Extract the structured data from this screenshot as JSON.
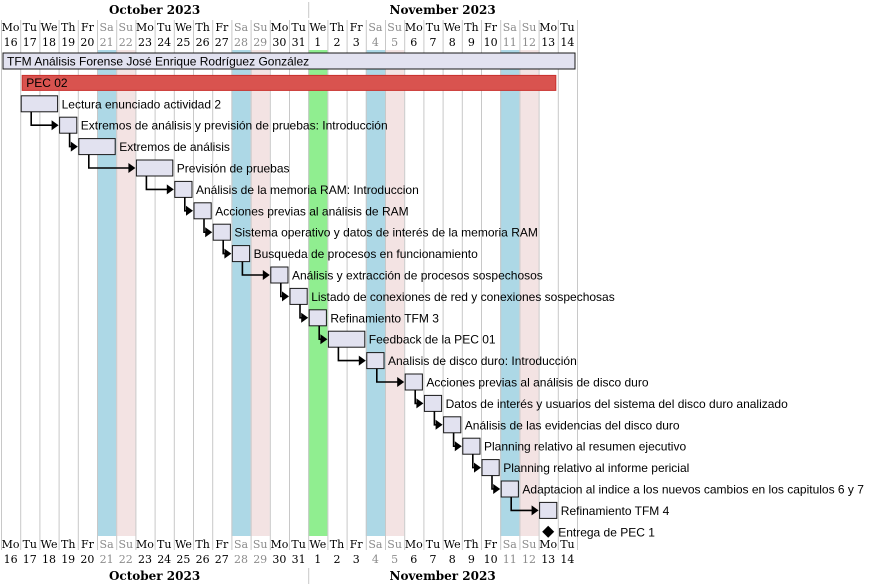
{
  "chart_data": {
    "type": "gantt",
    "start_date": "2023-10-16",
    "end_date": "2023-11-14",
    "months": [
      {
        "label": "October 2023",
        "first_day": "2023-10-16",
        "last_day": "2023-10-31"
      },
      {
        "label": "November 2023",
        "first_day": "2023-11-01",
        "last_day": "2023-11-14"
      }
    ],
    "days": [
      {
        "dow": "Mo",
        "num": "16",
        "weekend": false
      },
      {
        "dow": "Tu",
        "num": "17",
        "weekend": false
      },
      {
        "dow": "We",
        "num": "18",
        "weekend": false
      },
      {
        "dow": "Th",
        "num": "19",
        "weekend": false
      },
      {
        "dow": "Fr",
        "num": "20",
        "weekend": false
      },
      {
        "dow": "Sa",
        "num": "21",
        "weekend": true
      },
      {
        "dow": "Su",
        "num": "22",
        "weekend": true
      },
      {
        "dow": "Mo",
        "num": "23",
        "weekend": false
      },
      {
        "dow": "Tu",
        "num": "24",
        "weekend": false
      },
      {
        "dow": "We",
        "num": "25",
        "weekend": false
      },
      {
        "dow": "Th",
        "num": "26",
        "weekend": false
      },
      {
        "dow": "Fr",
        "num": "27",
        "weekend": false
      },
      {
        "dow": "Sa",
        "num": "28",
        "weekend": true
      },
      {
        "dow": "Su",
        "num": "29",
        "weekend": true
      },
      {
        "dow": "Mo",
        "num": "30",
        "weekend": false
      },
      {
        "dow": "Tu",
        "num": "31",
        "weekend": false
      },
      {
        "dow": "We",
        "num": "1",
        "weekend": false
      },
      {
        "dow": "Th",
        "num": "2",
        "weekend": false
      },
      {
        "dow": "Fr",
        "num": "3",
        "weekend": false
      },
      {
        "dow": "Sa",
        "num": "4",
        "weekend": true
      },
      {
        "dow": "Su",
        "num": "5",
        "weekend": true
      },
      {
        "dow": "Mo",
        "num": "6",
        "weekend": false
      },
      {
        "dow": "Tu",
        "num": "7",
        "weekend": false
      },
      {
        "dow": "We",
        "num": "8",
        "weekend": false
      },
      {
        "dow": "Th",
        "num": "9",
        "weekend": false
      },
      {
        "dow": "Fr",
        "num": "10",
        "weekend": false
      },
      {
        "dow": "Sa",
        "num": "11",
        "weekend": true
      },
      {
        "dow": "Su",
        "num": "12",
        "weekend": true
      },
      {
        "dow": "Mo",
        "num": "13",
        "weekend": false
      },
      {
        "dow": "Tu",
        "num": "14",
        "weekend": false
      }
    ],
    "highlighted_days": [
      {
        "date": "2023-10-21",
        "color": "#add8e6"
      },
      {
        "date": "2023-10-22",
        "color": "#f3e3e3"
      },
      {
        "date": "2023-10-28",
        "color": "#add8e6"
      },
      {
        "date": "2023-10-29",
        "color": "#f3e3e3"
      },
      {
        "date": "2023-11-01",
        "color": "#90ee90"
      },
      {
        "date": "2023-11-04",
        "color": "#add8e6"
      },
      {
        "date": "2023-11-05",
        "color": "#f3e3e3"
      },
      {
        "date": "2023-11-11",
        "color": "#add8e6"
      },
      {
        "date": "2023-11-12",
        "color": "#f3e3e3"
      }
    ],
    "project": {
      "label": "TFM Análisis Forense José Enrique Rodríguez González",
      "start": "2023-10-16",
      "end": "2023-11-14"
    },
    "phase": {
      "label": "PEC 02",
      "start": "2023-10-17",
      "end": "2023-11-13",
      "color": "#d9534f"
    },
    "tasks": [
      {
        "label": "Lectura enunciado actividad 2",
        "start": "2023-10-17",
        "end": "2023-10-18",
        "after_prev": false
      },
      {
        "label": "Extremos de análisis y previsión de pruebas: Introducción",
        "start": "2023-10-19",
        "end": "2023-10-19",
        "after_prev": true
      },
      {
        "label": "Extremos de análisis",
        "start": "2023-10-20",
        "end": "2023-10-21",
        "after_prev": true
      },
      {
        "label": "Previsión de pruebas",
        "start": "2023-10-23",
        "end": "2023-10-24",
        "after_prev": true
      },
      {
        "label": "Análisis de la memoria RAM: Introduccion",
        "start": "2023-10-25",
        "end": "2023-10-25",
        "after_prev": true
      },
      {
        "label": "Acciones previas al análisis de RAM",
        "start": "2023-10-26",
        "end": "2023-10-26",
        "after_prev": true
      },
      {
        "label": "Sistema operativo y datos de interés de la memoria RAM",
        "start": "2023-10-27",
        "end": "2023-10-27",
        "after_prev": true
      },
      {
        "label": "Busqueda de procesos en funcionamiento",
        "start": "2023-10-28",
        "end": "2023-10-28",
        "after_prev": true
      },
      {
        "label": "Análisis y extracción de procesos sospechosos",
        "start": "2023-10-30",
        "end": "2023-10-30",
        "after_prev": true
      },
      {
        "label": "Listado de conexiones de red y conexiones sospechosas",
        "start": "2023-10-31",
        "end": "2023-10-31",
        "after_prev": true
      },
      {
        "label": "Refinamiento TFM 3",
        "start": "2023-11-01",
        "end": "2023-11-01",
        "after_prev": true
      },
      {
        "label": "Feedback de la PEC 01",
        "start": "2023-11-02",
        "end": "2023-11-03",
        "after_prev": true
      },
      {
        "label": "Analisis de disco duro: Introducción",
        "start": "2023-11-04",
        "end": "2023-11-04",
        "after_prev": true
      },
      {
        "label": "Acciones previas al análisis de disco duro",
        "start": "2023-11-06",
        "end": "2023-11-06",
        "after_prev": true
      },
      {
        "label": "Datos de interés y usuarios del sistema del disco duro analizado",
        "start": "2023-11-07",
        "end": "2023-11-07",
        "after_prev": true
      },
      {
        "label": "Análisis de las evidencias del disco duro",
        "start": "2023-11-08",
        "end": "2023-11-08",
        "after_prev": true
      },
      {
        "label": "Planning relativo al resumen ejecutivo",
        "start": "2023-11-09",
        "end": "2023-11-09",
        "after_prev": true
      },
      {
        "label": "Planning relativo al informe pericial",
        "start": "2023-11-10",
        "end": "2023-11-10",
        "after_prev": true
      },
      {
        "label": "Adaptacion al indice a los nuevos cambios en los capitulos 6 y 7",
        "start": "2023-11-11",
        "end": "2023-11-11",
        "after_prev": true
      },
      {
        "label": "Refinamiento TFM 4",
        "start": "2023-11-13",
        "end": "2023-11-13",
        "after_prev": true
      }
    ],
    "milestones": [
      {
        "label": "Entrega de PEC 1",
        "date": "2023-11-13"
      }
    ]
  }
}
